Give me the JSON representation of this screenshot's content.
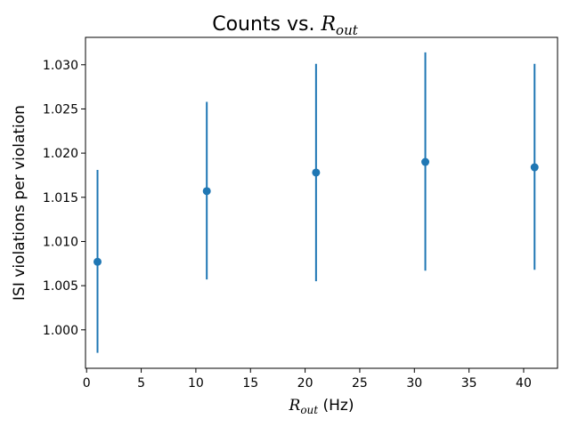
{
  "chart_data": {
    "type": "scatter",
    "title": "Counts vs. ",
    "title_math_base": "R",
    "title_math_sub": "out",
    "xlabel_math_base": "R",
    "xlabel_math_sub": "out",
    "xlabel_suffix": " (Hz)",
    "ylabel": "ISI violations per violation",
    "xlim": [
      -0.1,
      43.1
    ],
    "ylim": [
      0.99565,
      1.0331
    ],
    "x_ticks": [
      0,
      5,
      10,
      15,
      20,
      25,
      30,
      35,
      40
    ],
    "x_tick_labels": [
      "0",
      "5",
      "10",
      "15",
      "20",
      "25",
      "30",
      "35",
      "40"
    ],
    "y_ticks": [
      1.0,
      1.005,
      1.01,
      1.015,
      1.02,
      1.025,
      1.03
    ],
    "y_tick_labels": [
      "1.000",
      "1.005",
      "1.010",
      "1.015",
      "1.020",
      "1.025",
      "1.030"
    ],
    "grid": false,
    "color": "#1f77b4",
    "series": [
      {
        "x": [
          1,
          11,
          21,
          31,
          41
        ],
        "y": [
          1.0077,
          1.0157,
          1.0178,
          1.019,
          1.0184
        ],
        "yerr_low": [
          0.9974,
          1.0057,
          1.0055,
          1.0067,
          1.0068
        ],
        "yerr_high": [
          1.0181,
          1.0258,
          1.0301,
          1.0314,
          1.0301
        ]
      }
    ]
  }
}
